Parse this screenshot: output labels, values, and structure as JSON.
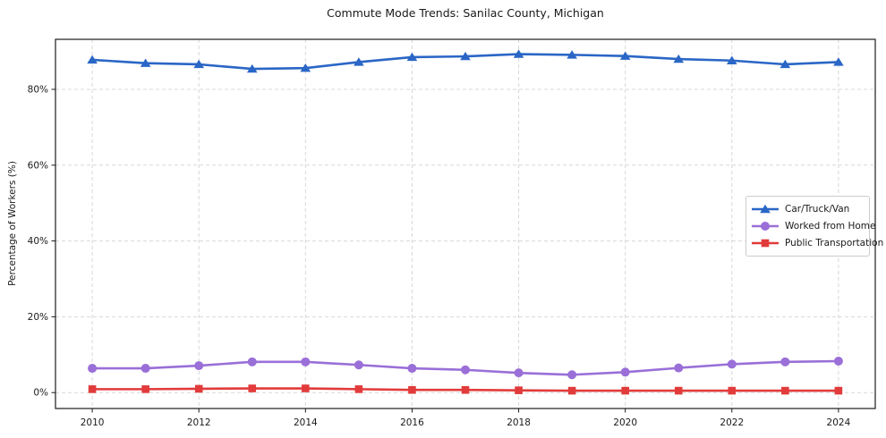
{
  "chart_data": {
    "type": "line",
    "title": "Commute Mode Trends: Sanilac County, Michigan",
    "xlabel": "",
    "ylabel": "Percentage of Workers (%)",
    "grid": true,
    "grid_style": "dashed",
    "legend_position": "middle-right",
    "x": [
      2010,
      2011,
      2012,
      2013,
      2014,
      2015,
      2016,
      2017,
      2018,
      2019,
      2020,
      2021,
      2022,
      2023,
      2024
    ],
    "x_ticks": [
      2010,
      2012,
      2014,
      2016,
      2018,
      2020,
      2022,
      2024
    ],
    "y_ticks": [
      {
        "value": 0,
        "label": "0%"
      },
      {
        "value": 20,
        "label": "20%"
      },
      {
        "value": 40,
        "label": "40%"
      },
      {
        "value": 60,
        "label": "60%"
      },
      {
        "value": 80,
        "label": "80%"
      }
    ],
    "xlim": [
      2009.31,
      2024.69
    ],
    "ylim": [
      -4.2,
      93.2
    ],
    "series": [
      {
        "name": "Car/Truck/Van",
        "color": "#2a66c6",
        "marker": "triangle",
        "values": [
          87.8,
          86.9,
          86.6,
          85.4,
          85.6,
          87.2,
          88.5,
          88.7,
          89.3,
          89.1,
          88.8,
          88.0,
          87.6,
          86.6,
          87.2
        ]
      },
      {
        "name": "Worked from Home",
        "color": "#9a6fd8",
        "marker": "circle",
        "values": [
          6.4,
          6.4,
          7.1,
          8.1,
          8.1,
          7.3,
          6.4,
          6.0,
          5.2,
          4.7,
          5.4,
          6.5,
          7.5,
          8.1,
          8.3
        ]
      },
      {
        "name": "Public Transportation",
        "color": "#e23b3b",
        "marker": "square",
        "values": [
          0.9,
          0.9,
          1.0,
          1.1,
          1.1,
          0.9,
          0.7,
          0.7,
          0.6,
          0.5,
          0.5,
          0.5,
          0.5,
          0.5,
          0.5
        ]
      }
    ],
    "axis_color": "#1a1a1a",
    "grid_color": "#d7d7d7"
  }
}
